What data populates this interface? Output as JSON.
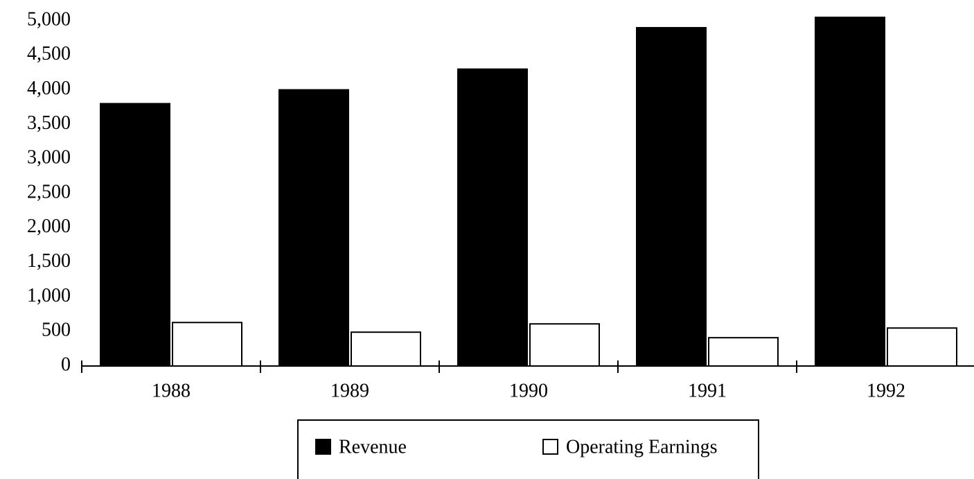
{
  "chart_data": {
    "type": "bar",
    "categories": [
      "1988",
      "1989",
      "1990",
      "1991",
      "1992"
    ],
    "series": [
      {
        "name": "Revenue",
        "color": "#000000",
        "values": [
          3800,
          4000,
          4300,
          4900,
          5050
        ]
      },
      {
        "name": "Operating Earnings",
        "color": "#ffffff",
        "values": [
          630,
          490,
          610,
          410,
          550
        ]
      }
    ],
    "ylim": [
      0,
      5000
    ],
    "yticks": [
      0,
      500,
      {
        "value": 1000,
        "label": "1,000"
      },
      {
        "value": 1500,
        "label": "1,500"
      },
      {
        "value": 2000,
        "label": "2,000"
      },
      {
        "value": 2500,
        "label": "2,500"
      },
      {
        "value": 3000,
        "label": "3,000"
      },
      {
        "value": 3500,
        "label": "3,500"
      },
      {
        "value": 4000,
        "label": "4,000"
      },
      {
        "value": 4500,
        "label": "4,500"
      },
      {
        "value": 5000,
        "label": "5,000"
      }
    ],
    "grid": false
  }
}
